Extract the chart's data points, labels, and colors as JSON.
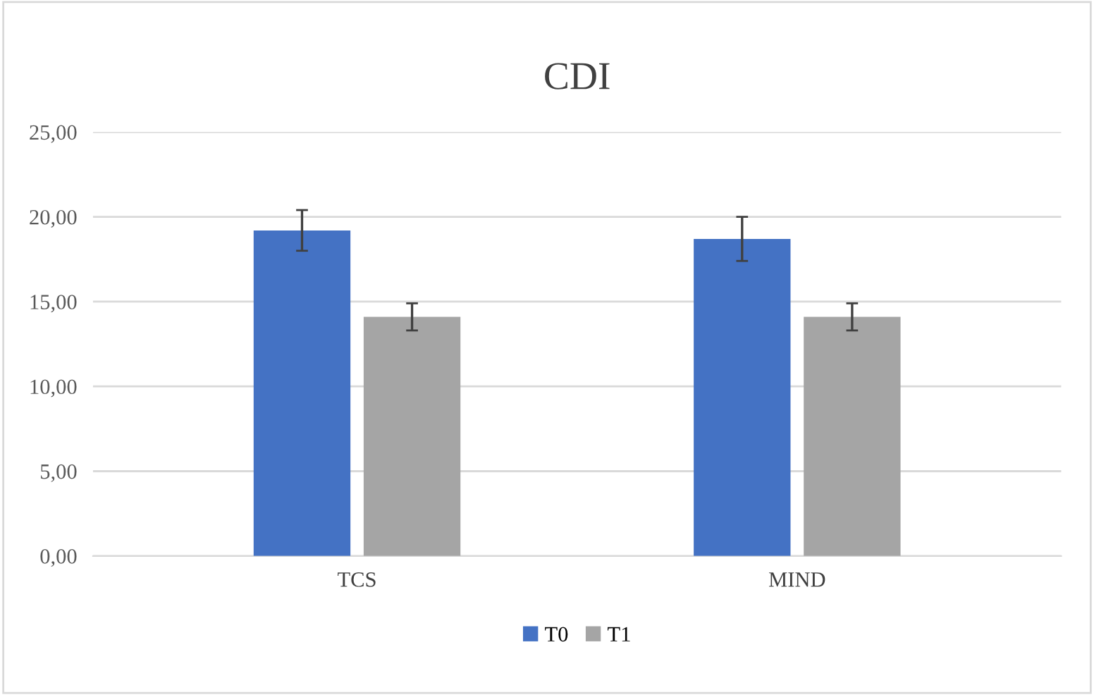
{
  "chart_data": {
    "type": "bar",
    "title": "CDI",
    "categories": [
      "TCS",
      "MIND"
    ],
    "series": [
      {
        "name": "T0",
        "color": "#4472c4",
        "values": [
          19.2,
          18.7
        ],
        "errors": [
          1.2,
          1.3
        ]
      },
      {
        "name": "T1",
        "color": "#a5a5a5",
        "values": [
          14.1,
          14.1
        ],
        "errors": [
          0.8,
          0.8
        ]
      }
    ],
    "ylim": [
      0,
      25
    ],
    "yticks": [
      {
        "value": 0,
        "label": "0,00"
      },
      {
        "value": 5,
        "label": "5,00"
      },
      {
        "value": 10,
        "label": "10,00"
      },
      {
        "value": 15,
        "label": "15,00"
      },
      {
        "value": 20,
        "label": "20,00"
      },
      {
        "value": 25,
        "label": "25,00"
      }
    ],
    "grid": "y",
    "legend": "bottom"
  }
}
